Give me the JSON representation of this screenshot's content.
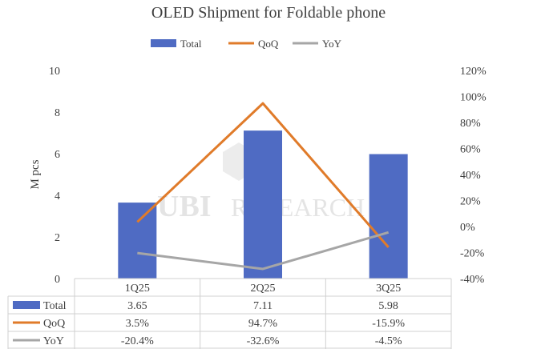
{
  "chart_data": {
    "type": "bar",
    "title": "OLED Shipment for Foldable phone",
    "ylabel": "M pcs",
    "categories": [
      "1Q25",
      "2Q25",
      "3Q25"
    ],
    "ylim": [
      0,
      10
    ],
    "y2lim": [
      -40,
      120
    ],
    "y_ticks": [
      "0",
      "2",
      "4",
      "6",
      "8",
      "10"
    ],
    "y2_ticks": [
      "-40%",
      "-20%",
      "0%",
      "20%",
      "40%",
      "60%",
      "80%",
      "100%",
      "120%"
    ],
    "legend_position": "top",
    "grid": false,
    "series": [
      {
        "name": "Total",
        "kind": "bar",
        "axis": "left",
        "color": "#4f6bc3",
        "values": [
          3.65,
          7.11,
          5.98
        ],
        "labels": [
          "3.65",
          "7.11",
          "5.98"
        ]
      },
      {
        "name": "QoQ",
        "kind": "line",
        "axis": "right",
        "color": "#e07b2a",
        "values": [
          3.5,
          94.7,
          -15.9
        ],
        "labels": [
          "3.5%",
          "94.7%",
          "-15.9%"
        ]
      },
      {
        "name": "YoY",
        "kind": "line",
        "axis": "right",
        "color": "#a6a6a6",
        "values": [
          -20.4,
          -32.6,
          -4.5
        ],
        "labels": [
          "-20.4%",
          "-32.6%",
          "-4.5%"
        ]
      }
    ],
    "watermark": "UBI RESEARCH"
  }
}
